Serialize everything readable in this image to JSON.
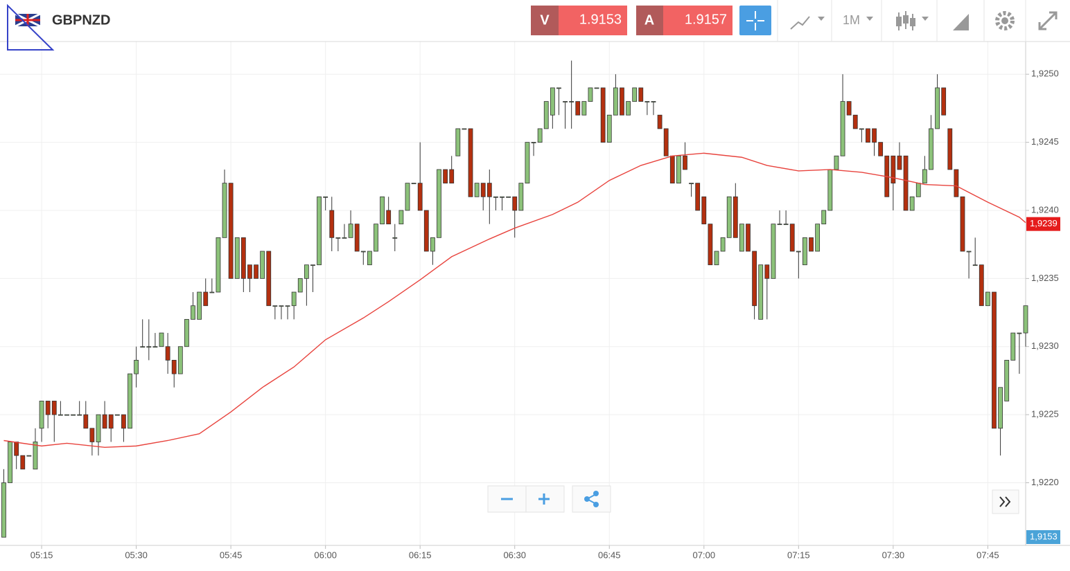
{
  "toolbar": {
    "symbol": "GBPNZD",
    "sell_letter": "V",
    "sell_price": "1.9153",
    "buy_letter": "A",
    "buy_price": "1.9157",
    "timeframe": "1M"
  },
  "chart_data": {
    "type": "candlestick",
    "up_color": "#8cc27a",
    "down_color": "#b4300f",
    "grid": true,
    "xlim": [
      308.4,
      471.0
    ],
    "ylim": [
      1.92154,
      1.92524
    ],
    "xticks": [
      {
        "value": 315,
        "label": "05:15"
      },
      {
        "value": 330,
        "label": "05:30"
      },
      {
        "value": 345,
        "label": "05:45"
      },
      {
        "value": 360,
        "label": "06:00"
      },
      {
        "value": 375,
        "label": "06:15"
      },
      {
        "value": 390,
        "label": "06:30"
      },
      {
        "value": 405,
        "label": "06:45"
      },
      {
        "value": 420,
        "label": "07:00"
      },
      {
        "value": 435,
        "label": "07:15"
      },
      {
        "value": 450,
        "label": "07:30"
      },
      {
        "value": 465,
        "label": "07:45"
      }
    ],
    "yticks": [
      {
        "value": 1.922,
        "label": "1,9220"
      },
      {
        "value": 1.9225,
        "label": "1,9225"
      },
      {
        "value": 1.923,
        "label": "1,9230"
      },
      {
        "value": 1.9235,
        "label": "1,9235"
      },
      {
        "value": 1.924,
        "label": "1,9240"
      },
      {
        "value": 1.9245,
        "label": "1,9245"
      },
      {
        "value": 1.925,
        "label": "1,9250"
      }
    ],
    "x": [
      309,
      310,
      311,
      312,
      313,
      314,
      315,
      316,
      317,
      318,
      319,
      320,
      321,
      322,
      323,
      324,
      325,
      326,
      327,
      328,
      329,
      330,
      331,
      332,
      333,
      334,
      335,
      336,
      337,
      338,
      339,
      340,
      341,
      342,
      343,
      344,
      345,
      346,
      347,
      348,
      349,
      350,
      351,
      352,
      353,
      354,
      355,
      356,
      357,
      358,
      359,
      360,
      361,
      362,
      363,
      364,
      365,
      366,
      367,
      368,
      369,
      370,
      371,
      372,
      373,
      374,
      375,
      376,
      377,
      378,
      379,
      380,
      381,
      382,
      383,
      384,
      385,
      386,
      387,
      388,
      389,
      390,
      391,
      392,
      393,
      394,
      395,
      396,
      397,
      398,
      399,
      400,
      401,
      402,
      403,
      404,
      405,
      406,
      407,
      408,
      409,
      410,
      411,
      412,
      413,
      414,
      415,
      416,
      417,
      418,
      419,
      420,
      421,
      422,
      423,
      424,
      425,
      426,
      427,
      428,
      429,
      430,
      431,
      432,
      433,
      434,
      435,
      436,
      437,
      438,
      439,
      440,
      441,
      442,
      443,
      444,
      445,
      446,
      447,
      448,
      449,
      450,
      451,
      452,
      453,
      454,
      455,
      456,
      457,
      458,
      459,
      460,
      461,
      462,
      463,
      464,
      465,
      466,
      467,
      468,
      469,
      470,
      471
    ],
    "ohlc": [
      [
        1.9216,
        1.9221,
        1.9216,
        1.922
      ],
      [
        1.922,
        1.9223,
        1.922,
        1.9223
      ],
      [
        1.9223,
        1.9223,
        1.9221,
        1.9222
      ],
      [
        1.9222,
        1.9222,
        1.9221,
        1.9221
      ],
      [
        1.9222,
        1.9222,
        1.9222,
        1.9222
      ],
      [
        1.9221,
        1.9224,
        1.9221,
        1.9223
      ],
      [
        1.9224,
        1.9226,
        1.9223,
        1.9226
      ],
      [
        1.9226,
        1.9226,
        1.9224,
        1.9225
      ],
      [
        1.9226,
        1.9226,
        1.9223,
        1.9225
      ],
      [
        1.9225,
        1.9226,
        1.9225,
        1.9225
      ],
      [
        1.9225,
        1.9225,
        1.9225,
        1.9225
      ],
      [
        1.9225,
        1.9225,
        1.9225,
        1.9225
      ],
      [
        1.9225,
        1.9226,
        1.9225,
        1.9225
      ],
      [
        1.9225,
        1.9226,
        1.9224,
        1.9224
      ],
      [
        1.9224,
        1.9224,
        1.9222,
        1.9223
      ],
      [
        1.9223,
        1.9225,
        1.9222,
        1.9225
      ],
      [
        1.9225,
        1.9226,
        1.9224,
        1.9224
      ],
      [
        1.9225,
        1.9225,
        1.9223,
        1.9224
      ],
      [
        1.9225,
        1.9225,
        1.9225,
        1.9225
      ],
      [
        1.9225,
        1.9225,
        1.9223,
        1.9224
      ],
      [
        1.9224,
        1.9228,
        1.9224,
        1.9228
      ],
      [
        1.9228,
        1.923,
        1.9227,
        1.9229
      ],
      [
        1.923,
        1.9232,
        1.923,
        1.923
      ],
      [
        1.923,
        1.9232,
        1.9229,
        1.923
      ],
      [
        1.923,
        1.9231,
        1.923,
        1.923
      ],
      [
        1.923,
        1.9231,
        1.923,
        1.9231
      ],
      [
        1.923,
        1.9231,
        1.9228,
        1.9229
      ],
      [
        1.9229,
        1.9229,
        1.9227,
        1.9228
      ],
      [
        1.9228,
        1.923,
        1.9228,
        1.923
      ],
      [
        1.923,
        1.9232,
        1.923,
        1.9232
      ],
      [
        1.9232,
        1.9234,
        1.9232,
        1.9233
      ],
      [
        1.9232,
        1.9234,
        1.9232,
        1.9234
      ],
      [
        1.9234,
        1.9235,
        1.9233,
        1.9233
      ],
      [
        1.9234,
        1.9235,
        1.9234,
        1.9234
      ],
      [
        1.9234,
        1.9238,
        1.9234,
        1.9238
      ],
      [
        1.9238,
        1.9243,
        1.9238,
        1.9242
      ],
      [
        1.9242,
        1.9242,
        1.9235,
        1.9235
      ],
      [
        1.9235,
        1.9238,
        1.9235,
        1.9238
      ],
      [
        1.9238,
        1.9238,
        1.9234,
        1.9235
      ],
      [
        1.9236,
        1.9236,
        1.9234,
        1.9235
      ],
      [
        1.9236,
        1.9236,
        1.9235,
        1.9235
      ],
      [
        1.9235,
        1.9237,
        1.9235,
        1.9237
      ],
      [
        1.9237,
        1.9237,
        1.9233,
        1.9233
      ],
      [
        1.9233,
        1.9233,
        1.9232,
        1.9233
      ],
      [
        1.9233,
        1.9233,
        1.9232,
        1.9233
      ],
      [
        1.9233,
        1.9233,
        1.9232,
        1.9233
      ],
      [
        1.9233,
        1.9234,
        1.9232,
        1.9234
      ],
      [
        1.9234,
        1.9235,
        1.9234,
        1.9235
      ],
      [
        1.9235,
        1.9236,
        1.9233,
        1.9236
      ],
      [
        1.9236,
        1.9236,
        1.9234,
        1.9236
      ],
      [
        1.9236,
        1.9241,
        1.9236,
        1.9241
      ],
      [
        1.9241,
        1.9241,
        1.924,
        1.9241
      ],
      [
        1.924,
        1.9241,
        1.9237,
        1.9238
      ],
      [
        1.9238,
        1.9238,
        1.9237,
        1.9238
      ],
      [
        1.9238,
        1.9239,
        1.9238,
        1.9238
      ],
      [
        1.9238,
        1.924,
        1.9238,
        1.9239
      ],
      [
        1.9239,
        1.9239,
        1.9237,
        1.9237
      ],
      [
        1.9237,
        1.9237,
        1.9236,
        1.9237
      ],
      [
        1.9236,
        1.9237,
        1.9236,
        1.9237
      ],
      [
        1.9237,
        1.9239,
        1.9237,
        1.9239
      ],
      [
        1.9239,
        1.9241,
        1.9239,
        1.9241
      ],
      [
        1.924,
        1.9241,
        1.9239,
        1.9239
      ],
      [
        1.9238,
        1.9239,
        1.9237,
        1.9238
      ],
      [
        1.9239,
        1.924,
        1.9239,
        1.924
      ],
      [
        1.924,
        1.9242,
        1.924,
        1.9242
      ],
      [
        1.9242,
        1.9242,
        1.9242,
        1.9242
      ],
      [
        1.9242,
        1.9245,
        1.924,
        1.924
      ],
      [
        1.924,
        1.924,
        1.9237,
        1.9237
      ],
      [
        1.9237,
        1.9238,
        1.9236,
        1.9238
      ],
      [
        1.9238,
        1.9243,
        1.9238,
        1.9243
      ],
      [
        1.9243,
        1.9243,
        1.9242,
        1.9242
      ],
      [
        1.9243,
        1.9244,
        1.9242,
        1.9242
      ],
      [
        1.9244,
        1.9246,
        1.9244,
        1.9246
      ],
      [
        1.9246,
        1.9246,
        1.9246,
        1.9246
      ],
      [
        1.9246,
        1.9246,
        1.9241,
        1.9241
      ],
      [
        1.9241,
        1.9242,
        1.9241,
        1.9242
      ],
      [
        1.9242,
        1.9242,
        1.924,
        1.9241
      ],
      [
        1.9242,
        1.9243,
        1.9239,
        1.9241
      ],
      [
        1.9241,
        1.9241,
        1.924,
        1.9241
      ],
      [
        1.9241,
        1.9241,
        1.924,
        1.9241
      ],
      [
        1.9241,
        1.9241,
        1.9241,
        1.9241
      ],
      [
        1.9241,
        1.9241,
        1.9238,
        1.924
      ],
      [
        1.924,
        1.9242,
        1.924,
        1.9242
      ],
      [
        1.9242,
        1.9245,
        1.9242,
        1.9245
      ],
      [
        1.9245,
        1.9245,
        1.9244,
        1.9245
      ],
      [
        1.9245,
        1.9246,
        1.9245,
        1.9246
      ],
      [
        1.9246,
        1.9248,
        1.9246,
        1.9248
      ],
      [
        1.9247,
        1.9249,
        1.9246,
        1.9249
      ],
      [
        1.9249,
        1.9249,
        1.9247,
        1.9249
      ],
      [
        1.9248,
        1.9248,
        1.9246,
        1.9248
      ],
      [
        1.9248,
        1.9251,
        1.9246,
        1.9248
      ],
      [
        1.9248,
        1.9248,
        1.9247,
        1.9247
      ],
      [
        1.9247,
        1.9248,
        1.9247,
        1.9248
      ],
      [
        1.9248,
        1.9249,
        1.9248,
        1.9249
      ],
      [
        1.9249,
        1.9249,
        1.9249,
        1.9249
      ],
      [
        1.9249,
        1.9249,
        1.9245,
        1.9245
      ],
      [
        1.9245,
        1.9247,
        1.9245,
        1.9247
      ],
      [
        1.9247,
        1.925,
        1.9247,
        1.9249
      ],
      [
        1.9249,
        1.9249,
        1.9247,
        1.9247
      ],
      [
        1.9247,
        1.9248,
        1.9247,
        1.9248
      ],
      [
        1.9248,
        1.9249,
        1.9248,
        1.9249
      ],
      [
        1.9249,
        1.9249,
        1.9248,
        1.9248
      ],
      [
        1.9248,
        1.9248,
        1.9247,
        1.9248
      ],
      [
        1.9248,
        1.9248,
        1.9247,
        1.9248
      ],
      [
        1.9247,
        1.9247,
        1.9246,
        1.9246
      ],
      [
        1.9246,
        1.9246,
        1.9244,
        1.9244
      ],
      [
        1.9244,
        1.9244,
        1.9242,
        1.9242
      ],
      [
        1.9242,
        1.9244,
        1.9242,
        1.9244
      ],
      [
        1.9244,
        1.9245,
        1.9243,
        1.9243
      ],
      [
        1.9242,
        1.9242,
        1.9241,
        1.9242
      ],
      [
        1.9242,
        1.9242,
        1.924,
        1.924
      ],
      [
        1.9241,
        1.9241,
        1.9239,
        1.9239
      ],
      [
        1.9239,
        1.9239,
        1.9236,
        1.9236
      ],
      [
        1.9236,
        1.9237,
        1.9236,
        1.9237
      ],
      [
        1.9237,
        1.9238,
        1.9237,
        1.9238
      ],
      [
        1.9238,
        1.9241,
        1.9238,
        1.9241
      ],
      [
        1.9241,
        1.9242,
        1.9238,
        1.9238
      ],
      [
        1.9237,
        1.9239,
        1.9237,
        1.9239
      ],
      [
        1.9239,
        1.9239,
        1.9237,
        1.9237
      ],
      [
        1.9237,
        1.9237,
        1.9232,
        1.9233
      ],
      [
        1.9232,
        1.9236,
        1.9232,
        1.9236
      ],
      [
        1.9236,
        1.9236,
        1.9232,
        1.9235
      ],
      [
        1.9235,
        1.9239,
        1.9235,
        1.9239
      ],
      [
        1.9239,
        1.924,
        1.9239,
        1.9239
      ],
      [
        1.9239,
        1.924,
        1.9239,
        1.9239
      ],
      [
        1.9239,
        1.9239,
        1.9237,
        1.9237
      ],
      [
        1.9237,
        1.9237,
        1.9235,
        1.9237
      ],
      [
        1.9236,
        1.9238,
        1.9236,
        1.9238
      ],
      [
        1.9238,
        1.9238,
        1.9237,
        1.9237
      ],
      [
        1.9237,
        1.9239,
        1.9237,
        1.9239
      ],
      [
        1.9239,
        1.924,
        1.9239,
        1.924
      ],
      [
        1.924,
        1.9243,
        1.924,
        1.9243
      ],
      [
        1.9243,
        1.9244,
        1.9243,
        1.9244
      ],
      [
        1.9244,
        1.925,
        1.9244,
        1.9248
      ],
      [
        1.9248,
        1.9248,
        1.9247,
        1.9247
      ],
      [
        1.9247,
        1.9247,
        1.9246,
        1.9246
      ],
      [
        1.9246,
        1.9246,
        1.9245,
        1.9246
      ],
      [
        1.9246,
        1.9246,
        1.9245,
        1.9245
      ],
      [
        1.9246,
        1.9246,
        1.9244,
        1.9245
      ],
      [
        1.9245,
        1.9245,
        1.9244,
        1.9244
      ],
      [
        1.9244,
        1.9244,
        1.9241,
        1.9241
      ],
      [
        1.9244,
        1.9244,
        1.924,
        1.9242
      ],
      [
        1.9244,
        1.9245,
        1.9243,
        1.9243
      ],
      [
        1.9244,
        1.9244,
        1.924,
        1.924
      ],
      [
        1.924,
        1.9241,
        1.924,
        1.9241
      ],
      [
        1.9241,
        1.9242,
        1.9241,
        1.9242
      ],
      [
        1.9242,
        1.9244,
        1.9242,
        1.9243
      ],
      [
        1.9243,
        1.9247,
        1.9243,
        1.9246
      ],
      [
        1.9246,
        1.925,
        1.9246,
        1.9249
      ],
      [
        1.9249,
        1.9249,
        1.9247,
        1.9247
      ],
      [
        1.9246,
        1.9246,
        1.9243,
        1.9243
      ],
      [
        1.9243,
        1.9243,
        1.9241,
        1.9241
      ],
      [
        1.9241,
        1.9241,
        1.9237,
        1.9237
      ],
      [
        1.9237,
        1.9237,
        1.9235,
        1.9237
      ],
      [
        1.9236,
        1.9238,
        1.9236,
        1.9236
      ],
      [
        1.9236,
        1.9236,
        1.9233,
        1.9233
      ],
      [
        1.9233,
        1.9234,
        1.9233,
        1.9234
      ],
      [
        1.9234,
        1.9234,
        1.9224,
        1.9224
      ],
      [
        1.9224,
        1.9227,
        1.9222,
        1.9227
      ],
      [
        1.9226,
        1.9229,
        1.9226,
        1.9229
      ],
      [
        1.9229,
        1.9231,
        1.9229,
        1.9231
      ],
      [
        1.9231,
        1.9231,
        1.9228,
        1.9231
      ],
      [
        1.9231,
        1.9233,
        1.923,
        1.9233
      ]
    ],
    "moving_average": {
      "color": "#e8433d",
      "x": [
        309,
        315,
        319,
        325,
        330,
        335,
        340,
        345,
        350,
        355,
        360,
        366,
        370,
        375,
        380,
        386,
        390,
        396,
        400,
        405,
        410,
        415,
        420,
        426,
        430,
        435,
        440,
        445,
        450,
        455,
        460,
        465,
        470,
        471
      ],
      "values": [
        1.92231,
        1.92227,
        1.92229,
        1.92226,
        1.92227,
        1.92231,
        1.92236,
        1.92252,
        1.9227,
        1.92285,
        1.92305,
        1.92321,
        1.92333,
        1.92349,
        1.92366,
        1.92379,
        1.92387,
        1.92397,
        1.92406,
        1.92422,
        1.92433,
        1.9244,
        1.92442,
        1.92439,
        1.92433,
        1.92429,
        1.9243,
        1.92428,
        1.92424,
        1.92419,
        1.92418,
        1.92406,
        1.92395,
        1.92391
      ],
      "last_value": {
        "value": 1.9239,
        "label": "1,9239"
      }
    },
    "price_marker": {
      "value": 1.9153,
      "label": "1,9153"
    }
  }
}
